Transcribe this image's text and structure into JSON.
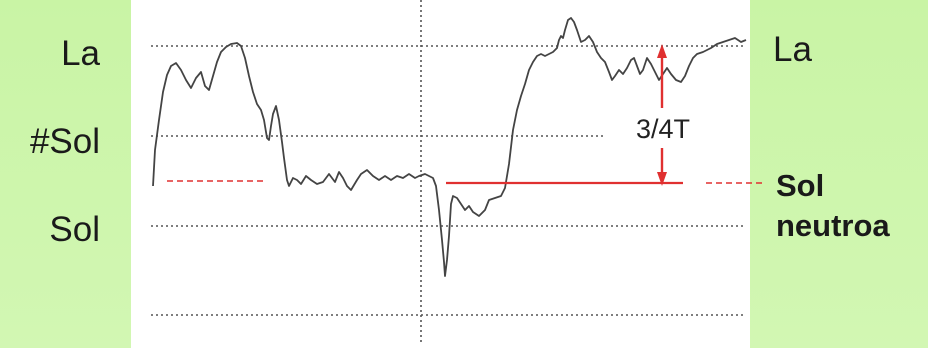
{
  "labels": {
    "left_top": "La",
    "left_mid": "#Sol",
    "left_bottom": "Sol",
    "right_top": "La",
    "right_bottom_line1": "Sol",
    "right_bottom_line2": "neutroa"
  },
  "annotation": {
    "interval": "3/4T"
  },
  "colors": {
    "background": "#ccf5a8",
    "plot_background": "#ffffff",
    "trace": "#444444",
    "gridline": "#555555",
    "marker": "#e03030"
  }
}
